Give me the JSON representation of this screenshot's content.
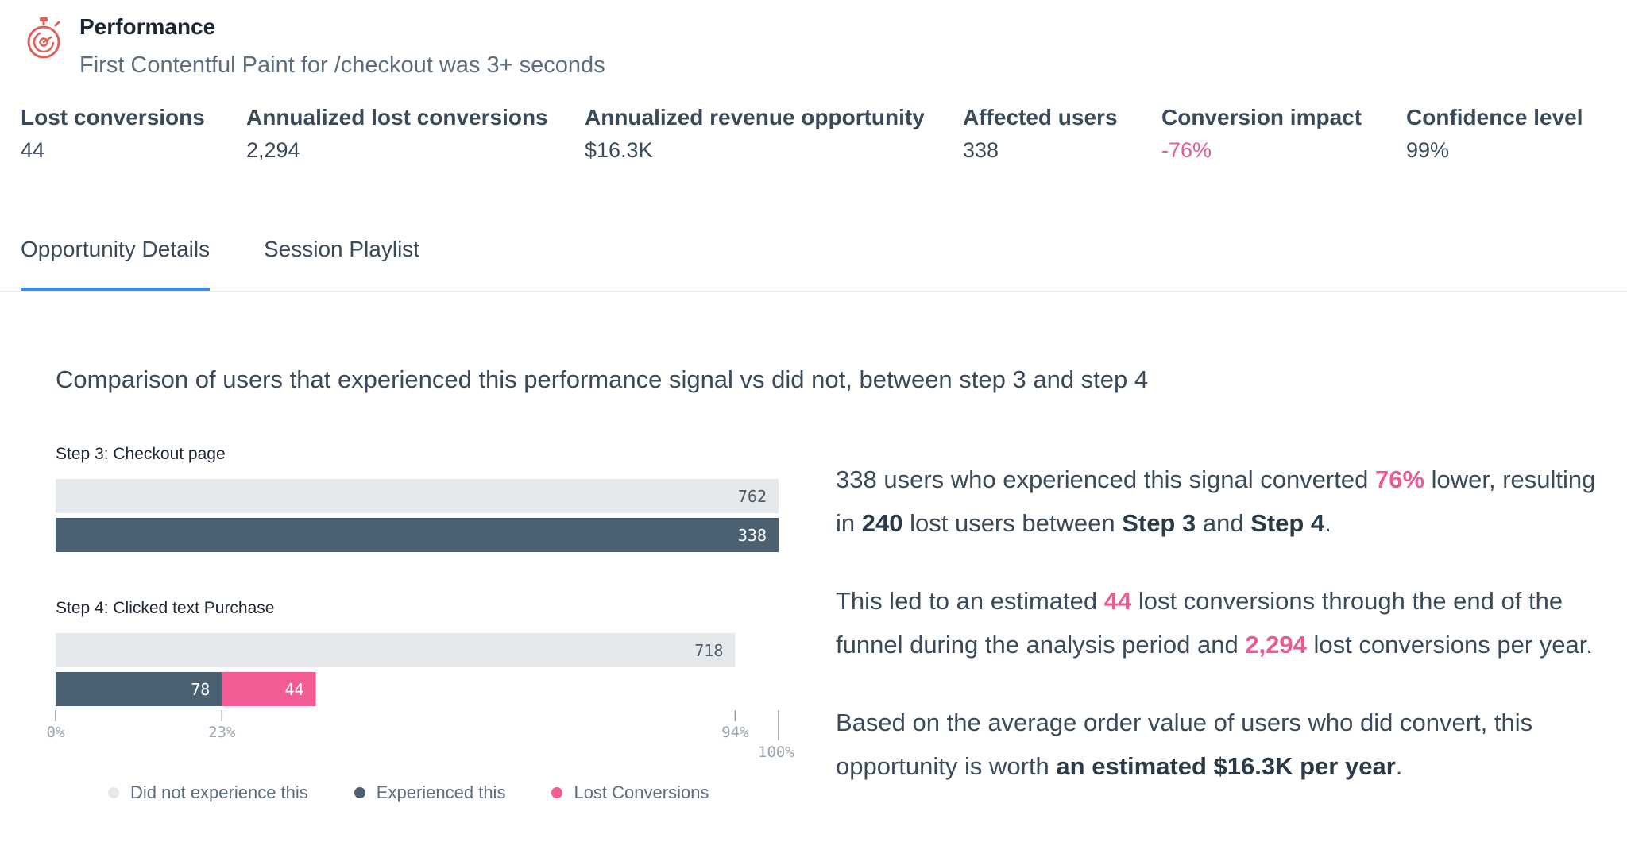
{
  "header": {
    "title": "Performance",
    "subtitle": "First Contentful Paint for /checkout was 3+ seconds",
    "icon": "stopwatch-icon"
  },
  "metrics": [
    {
      "label": "Lost conversions",
      "value": "44"
    },
    {
      "label": "Annualized lost conversions",
      "value": "2,294"
    },
    {
      "label": "Annualized revenue opportunity",
      "value": "$16.3K"
    },
    {
      "label": "Affected users",
      "value": "338"
    },
    {
      "label": "Conversion impact",
      "value": "-76%"
    },
    {
      "label": "Confidence level",
      "value": "99%"
    }
  ],
  "tabs": [
    {
      "label": "Opportunity Details",
      "active": true
    },
    {
      "label": "Session Playlist",
      "active": false
    }
  ],
  "section": {
    "title": "Comparison of users that experienced this performance signal vs did not, between step 3 and step 4"
  },
  "colors": {
    "not_experienced": "#e6e9ec",
    "experienced": "#4b6172",
    "lost": "#f25b93",
    "accent": "#3d8fe0",
    "pink_text": "#e85b96"
  },
  "chart_data": {
    "type": "bar",
    "orientation": "horizontal",
    "x_range_percent": [
      0,
      100
    ],
    "ticks": [
      "0%",
      "23%",
      "94%",
      "100%"
    ],
    "tick_values": [
      0,
      23,
      94,
      100
    ],
    "legend": [
      "Did not experience this",
      "Experienced this",
      "Lost Conversions"
    ],
    "legend_position": "bottom",
    "steps": [
      {
        "label": "Step 3: Checkout page",
        "not_experienced": {
          "value": 762,
          "percent": 100
        },
        "experienced": {
          "value": 338,
          "percent": 100
        },
        "lost": null
      },
      {
        "label": "Step 4: Clicked text Purchase",
        "not_experienced": {
          "value": 718,
          "percent": 94
        },
        "experienced": {
          "value": 78,
          "percent": 23
        },
        "lost": {
          "value": 44,
          "percent": 13
        }
      }
    ]
  },
  "narrative": {
    "p1": {
      "a": "338 users who experienced this signal converted ",
      "b": "76%",
      "c": " lower, resulting in ",
      "d": "240",
      "e": " lost users between ",
      "f": "Step 3",
      "g": " and ",
      "h": "Step 4",
      "i": "."
    },
    "p2": {
      "a": "This led to an estimated ",
      "b": "44",
      "c": " lost conversions through the end of the funnel during the analysis period and ",
      "d": "2,294",
      "e": " lost conversions per year."
    },
    "p3": {
      "a": "Based on the average order value of users who did convert, this opportunity is worth ",
      "b": "an estimated $16.3K per year",
      "c": "."
    }
  }
}
